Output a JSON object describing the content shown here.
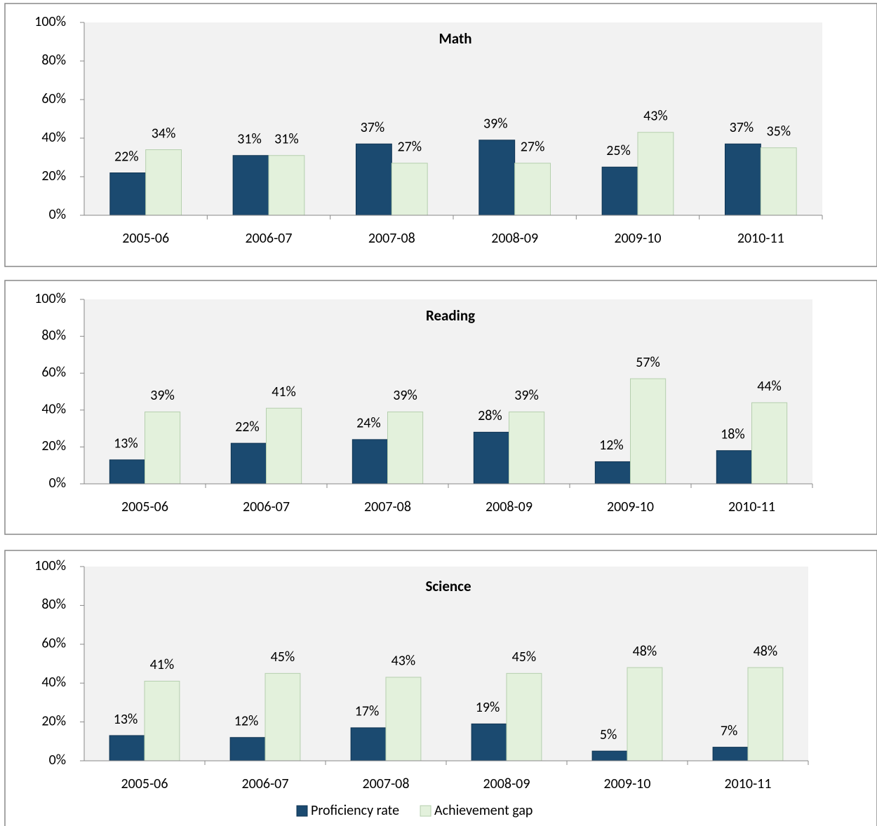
{
  "chart_data": [
    {
      "type": "bar",
      "title": "Math",
      "categories": [
        "2005-06",
        "2006-07",
        "2007-08",
        "2008-09",
        "2009-10",
        "2010-11"
      ],
      "series": [
        {
          "color": "#1b4a70",
          "values": [
            22,
            31,
            37,
            39,
            25,
            37
          ],
          "value_labels": [
            "22%",
            "31%",
            "37%",
            "39%",
            "25%",
            "37%"
          ]
        },
        {
          "color": "#e3f1dc",
          "values": [
            34,
            31,
            27,
            27,
            43,
            35
          ],
          "value_labels": [
            "34%",
            "31%",
            "27%",
            "27%",
            "43%",
            "35%"
          ]
        }
      ],
      "ylim": [
        0,
        100
      ],
      "yticks": [
        {
          "value": 0,
          "label": "0%"
        },
        {
          "value": 20,
          "label": "20%"
        },
        {
          "value": 40,
          "label": "40%"
        },
        {
          "value": 60,
          "label": "60%"
        },
        {
          "value": 80,
          "label": "80%"
        },
        {
          "value": 100,
          "label": "100%"
        }
      ]
    },
    {
      "type": "bar",
      "title": "Reading",
      "categories": [
        "2005-06",
        "2006-07",
        "2007-08",
        "2008-09",
        "2009-10",
        "2010-11"
      ],
      "series": [
        {
          "color": "#1b4a70",
          "values": [
            13,
            22,
            24,
            28,
            12,
            18
          ],
          "value_labels": [
            "13%",
            "22%",
            "24%",
            "28%",
            "12%",
            "18%"
          ]
        },
        {
          "color": "#e3f1dc",
          "values": [
            39,
            41,
            39,
            39,
            57,
            44
          ],
          "value_labels": [
            "39%",
            "41%",
            "39%",
            "39%",
            "57%",
            "44%"
          ]
        }
      ],
      "ylim": [
        0,
        100
      ],
      "yticks": [
        {
          "value": 0,
          "label": "0%"
        },
        {
          "value": 20,
          "label": "20%"
        },
        {
          "value": 40,
          "label": "40%"
        },
        {
          "value": 60,
          "label": "60%"
        },
        {
          "value": 80,
          "label": "80%"
        },
        {
          "value": 100,
          "label": "100%"
        }
      ]
    },
    {
      "type": "bar",
      "title": "Science",
      "categories": [
        "2005-06",
        "2006-07",
        "2007-08",
        "2008-09",
        "2009-10",
        "2010-11"
      ],
      "series": [
        {
          "name": "Proficiency rate",
          "color": "#1b4a70",
          "values": [
            13,
            12,
            17,
            19,
            5,
            7
          ],
          "value_labels": [
            "13%",
            "12%",
            "17%",
            "19%",
            "5%",
            "7%"
          ]
        },
        {
          "name": "Achievement gap",
          "color": "#e3f1dc",
          "values": [
            41,
            45,
            43,
            45,
            48,
            48
          ],
          "value_labels": [
            "41%",
            "45%",
            "43%",
            "45%",
            "48%",
            "48%"
          ]
        }
      ],
      "ylim": [
        0,
        100
      ],
      "yticks": [
        {
          "value": 0,
          "label": "0%"
        },
        {
          "value": 20,
          "label": "20%"
        },
        {
          "value": 40,
          "label": "40%"
        },
        {
          "value": 60,
          "label": "60%"
        },
        {
          "value": 80,
          "label": "80%"
        },
        {
          "value": 100,
          "label": "100%"
        }
      ],
      "legend": "bottom"
    }
  ]
}
